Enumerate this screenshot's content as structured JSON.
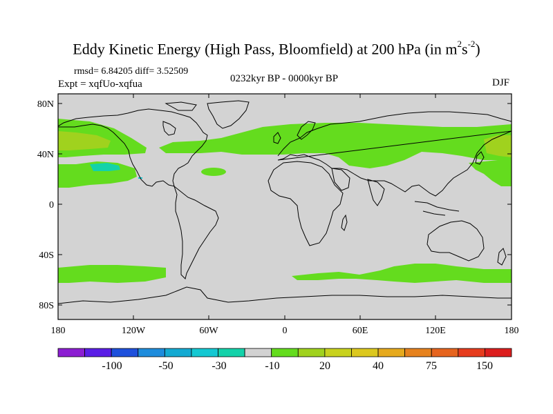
{
  "title": {
    "main": "Eddy Kinetic Energy (High Pass, Bloomfield) at 200 hPa (in m",
    "sup1": "2",
    "mid": "s",
    "sup2": "-2",
    "end": ")"
  },
  "stats": "rmsd= 6.84205  diff= 3.52509",
  "expt": "Expt = xqfUo-xqfua",
  "period": "0232kyr BP - 0000kyr BP",
  "season": "DJF",
  "lat_ticks": [
    "80N",
    "40N",
    "0",
    "40S",
    "80S"
  ],
  "lon_ticks": [
    "180",
    "120W",
    "60W",
    "0",
    "60E",
    "120E",
    "180"
  ],
  "colorbar": {
    "colors": [
      "#8c1ed2",
      "#5a1ee6",
      "#1e50dc",
      "#1e8cdc",
      "#14aad2",
      "#14c8d2",
      "#14d2aa",
      "#d2d2d2",
      "#64dc1e",
      "#a0d21e",
      "#c8d21e",
      "#dcc81e",
      "#e6aa1e",
      "#e6821e",
      "#e6641e",
      "#e63c1e",
      "#dc1e1e"
    ],
    "labels": [
      "-100",
      "-50",
      "-30",
      "-10",
      "20",
      "40",
      "75",
      "150"
    ]
  },
  "palette": {
    "ocean_bg": "#d3d3d3",
    "positive_light": "#64dc1e",
    "positive_mid": "#a0d21e",
    "negative": "#14d2aa"
  }
}
